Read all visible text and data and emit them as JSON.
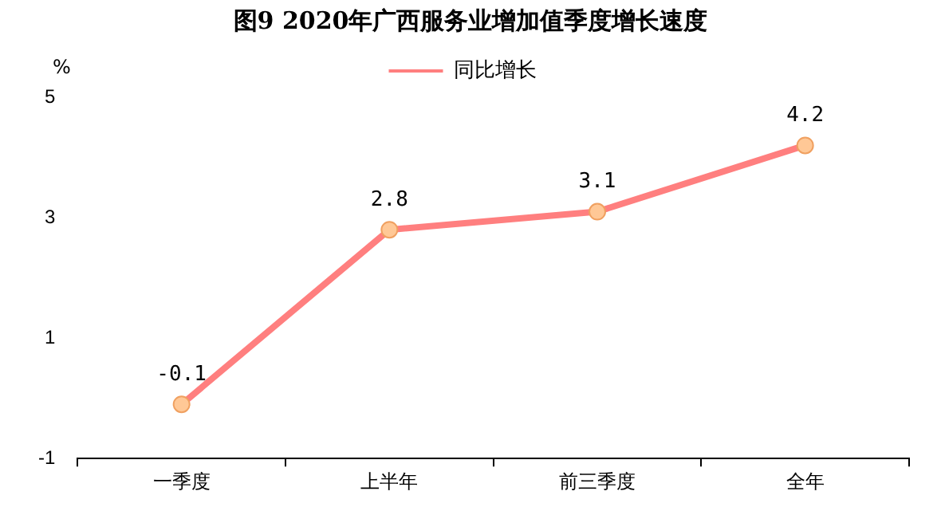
{
  "chart_data": {
    "type": "line",
    "title": "图9 2020年广西服务业增加值季度增长速度",
    "ylabel": "%",
    "categories": [
      "一季度",
      "上半年",
      "前三季度",
      "全年"
    ],
    "series": [
      {
        "name": "同比增长",
        "color": "#ff7f7f",
        "values": [
          -0.1,
          2.8,
          3.1,
          4.2
        ]
      }
    ],
    "ylim": [
      -1,
      5
    ],
    "yticks": [
      -1,
      1,
      3,
      5
    ],
    "grid": false,
    "legend": "top",
    "marker": "circle",
    "line_style": "solid",
    "data_labels": true
  }
}
